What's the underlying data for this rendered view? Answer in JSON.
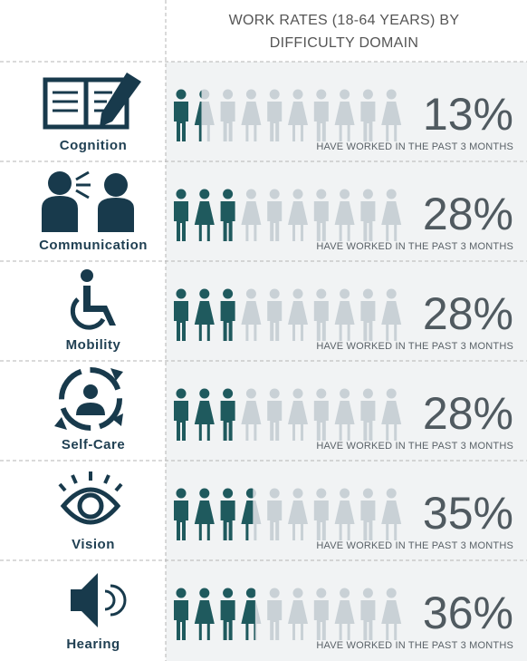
{
  "chart_data": {
    "type": "pictogram",
    "title": [
      "WORK RATES (18-64 YEARS) BY",
      "DIFFICULTY DOMAIN"
    ],
    "categories": [
      "Cognition",
      "Communication",
      "Mobility",
      "Self-Care",
      "Vision",
      "Hearing"
    ],
    "values": [
      13,
      28,
      28,
      28,
      35,
      36
    ],
    "value_labels": [
      "13%",
      "28%",
      "28%",
      "28%",
      "35%",
      "36%"
    ],
    "annotation": "HAVE WORKED IN THE PAST 3 MONTHS",
    "xlim": [
      0,
      100
    ],
    "color": "#1f5a5e",
    "empty_color": "#c9d1d6"
  }
}
